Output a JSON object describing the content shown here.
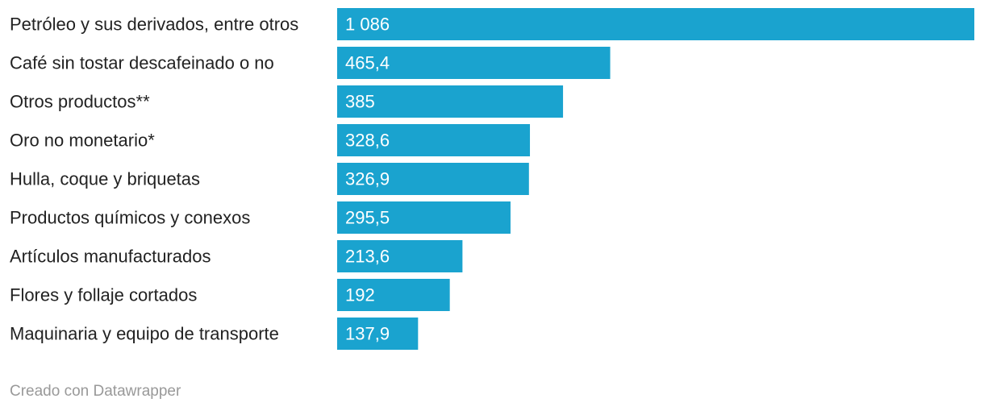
{
  "chart_data": {
    "type": "bar",
    "orientation": "horizontal",
    "categories": [
      "Petróleo y sus derivados, entre otros",
      "Café sin tostar descafeinado o no",
      "Otros productos**",
      "Oro no monetario*",
      "Hulla, coque y briquetas",
      "Productos químicos y conexos",
      "Artículos manufacturados",
      "Flores y follaje cortados",
      "Maquinaria y equipo de transporte"
    ],
    "values": [
      1086,
      465.4,
      385,
      328.6,
      326.9,
      295.5,
      213.6,
      192,
      137.9
    ],
    "value_labels": [
      "1 086",
      "465,4",
      "385",
      "328,6",
      "326,9",
      "295,5",
      "213,6",
      "192",
      "137,9"
    ],
    "xlim": [
      0,
      1086
    ],
    "grid": false,
    "bar_color": "#1aa3cf"
  },
  "footer": {
    "credit": "Creado con Datawrapper"
  }
}
